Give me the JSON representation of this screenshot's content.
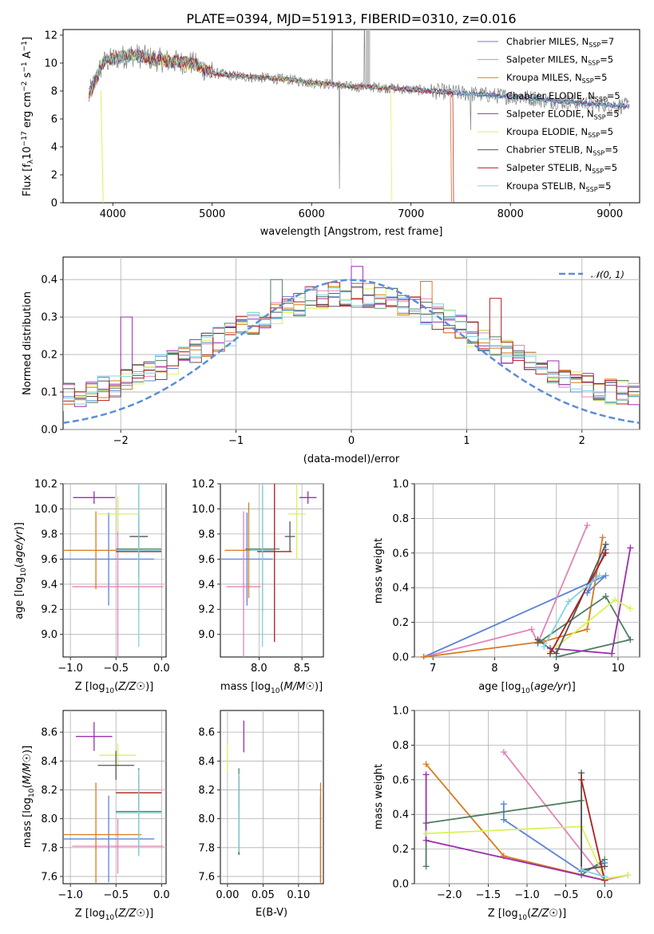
{
  "colors": {
    "Chabrier MILES": "#5b84d6",
    "Salpeter MILES": "#e383b8",
    "Kroupa MILES": "#d87a1f",
    "Chabrier ELODIE": "#4f7e61",
    "Salpeter ELODIE": "#9b2fb0",
    "Kroupa ELODIE": "#d8f25a",
    "Chabrier STELIB": "#555555",
    "Salpeter STELIB": "#b01c1c",
    "Kroupa STELIB": "#7fd6e0",
    "normal": "#5b8ed6",
    "grid": "#b0b0b0"
  },
  "chart_data": [
    {
      "id": "spectrum",
      "type": "line",
      "title": "PLATE=0394, MJD=51913, FIBERID=0310, z=0.016",
      "xlabel": "wavelength [Angstrom, rest frame]",
      "ylabel": "Flux [f_λ10^-17 erg cm^-2 s^-1 A^-1]",
      "xlim": [
        3500,
        9300
      ],
      "ylim": [
        0,
        12.4
      ],
      "xticks": [
        "4000",
        "5000",
        "6000",
        "7000",
        "8000",
        "9000"
      ],
      "yticks": [
        "0",
        "2",
        "4",
        "6",
        "8",
        "10",
        "12"
      ],
      "grid": false,
      "legend_position": "upper right",
      "legend": [
        "Chabrier MILES, N_SSP=7",
        "Salpeter MILES, N_SSP=5",
        "Kroupa MILES, N_SSP=5",
        "Chabrier ELODIE, N_SSP=5",
        "Salpeter ELODIE, N_SSP=5",
        "Kroupa ELODIE, N_SSP=5",
        "Chabrier STELIB, N_SSP=5",
        "Salpeter STELIB, N_SSP=5",
        "Kroupa STELIB, N_SSP=5"
      ],
      "legend_main": [
        "Chabrier MILES, N",
        "Salpeter MILES, N",
        "Kroupa MILES, N",
        "Chabrier ELODIE, N",
        "Salpeter ELODIE, N",
        "Kroupa ELODIE, N",
        "Chabrier STELIB, N",
        "Salpeter STELIB, N",
        "Kroupa STELIB, N"
      ],
      "legend_sub": "SSP",
      "legend_val": [
        "=7",
        "=5",
        "=5",
        "=5",
        "=5",
        "=5",
        "=5",
        "=5",
        "=5"
      ],
      "continuum_x": [
        3750,
        3900,
        4000,
        4200,
        4400,
        4600,
        4800,
        5000,
        5200,
        5400,
        5600,
        5800,
        6000,
        6200,
        6400,
        6600,
        6800,
        7000,
        7200,
        7400,
        7600,
        7800,
        8000,
        8200,
        8400,
        8600,
        8800,
        9000,
        9200
      ],
      "continuum_y": [
        7.5,
        10.0,
        10.3,
        10.6,
        10.3,
        10.1,
        10.0,
        9.3,
        9.1,
        9.0,
        8.9,
        8.8,
        8.6,
        8.5,
        8.3,
        8.3,
        8.2,
        8.1,
        8.0,
        7.9,
        7.8,
        7.7,
        7.6,
        7.5,
        7.3,
        7.2,
        7.1,
        7.0,
        6.9
      ],
      "model_cutoffs": [
        {
          "series": "Kroupa ELODIE",
          "x_end": 6800
        },
        {
          "series": "Salpeter STELIB",
          "x_end": 7420
        },
        {
          "series": "Kroupa MILES",
          "x_end": 7400
        },
        {
          "series": "Salpeter MILES",
          "x_end": 7400
        }
      ]
    },
    {
      "id": "residuals",
      "type": "step",
      "xlabel": "(data-model)/error",
      "ylabel": "Normed distribution",
      "xlim": [
        -2.5,
        2.5
      ],
      "ylim": [
        0,
        0.46
      ],
      "xticks": [
        "−2",
        "−1",
        "0",
        "1",
        "2"
      ],
      "yticks": [
        "0.0",
        "0.1",
        "0.2",
        "0.3",
        "0.4"
      ],
      "grid": true,
      "legend_position": "upper right",
      "legend": [
        "𝒩(0, 1)"
      ],
      "bin_width": 0.1,
      "reference_curve": "gaussian mean 0 sigma 1",
      "series_order": [
        "Chabrier MILES",
        "Salpeter MILES",
        "Kroupa MILES",
        "Chabrier ELODIE",
        "Salpeter ELODIE",
        "Kroupa ELODIE",
        "Chabrier STELIB",
        "Salpeter STELIB",
        "Kroupa STELIB"
      ]
    },
    {
      "id": "age_vs_Z",
      "type": "errorbar",
      "xlabel": "Z [log10(Z/Z☉)]",
      "ylabel": "age [log10(age/yr)]",
      "xlim": [
        -1.08,
        0.05
      ],
      "ylim": [
        8.82,
        10.2
      ],
      "xticks": [
        "−1.0",
        "−0.5",
        "0.0"
      ],
      "yticks": [
        "9.0",
        "9.2",
        "9.4",
        "9.6",
        "9.8",
        "10.0",
        "10.2"
      ],
      "grid": true,
      "points": [
        {
          "series": "Chabrier MILES",
          "x": -0.58,
          "xerr": 0.5,
          "y": 9.6,
          "yerr": 0.37
        },
        {
          "series": "Salpeter MILES",
          "x": -0.48,
          "xerr": 0.5,
          "y": 9.38,
          "yerr": 0.7
        },
        {
          "series": "Kroupa MILES",
          "x": -0.72,
          "xerr": 0.5,
          "y": 9.67,
          "yerr": 0.31
        },
        {
          "series": "Chabrier ELODIE",
          "x": -0.25,
          "xerr": 0.25,
          "y": 9.68,
          "yerr": 0.5
        },
        {
          "series": "Salpeter ELODIE",
          "x": -0.74,
          "xerr": 0.23,
          "y": 10.09,
          "yerr": 0.05
        },
        {
          "series": "Kroupa ELODIE",
          "x": -0.48,
          "xerr": 0.22,
          "y": 9.96,
          "yerr": 0.14
        },
        {
          "series": "Chabrier STELIB",
          "x": -0.25,
          "xerr": 0.1,
          "y": 9.78,
          "yerr": 0.16
        },
        {
          "series": "Salpeter STELIB",
          "x": -0.25,
          "xerr": 0.25,
          "y": 9.66,
          "yerr": 0.2
        },
        {
          "series": "Kroupa STELIB",
          "x": -0.25,
          "xerr": 0.25,
          "y": 9.67,
          "yerr": 0.77
        }
      ]
    },
    {
      "id": "age_vs_mass",
      "type": "errorbar",
      "xlabel": "mass [log10(M/M☉)]",
      "ylabel": "",
      "xlim": [
        7.55,
        8.75
      ],
      "ylim": [
        8.82,
        10.2
      ],
      "xticks": [
        "8.0",
        "8.5"
      ],
      "yticks": [
        "9.0",
        "9.2",
        "9.4",
        "9.6",
        "9.8",
        "10.0",
        "10.2"
      ],
      "grid": true,
      "points": [
        {
          "series": "Chabrier MILES",
          "x": 7.86,
          "xerr": 0.3,
          "y": 9.6,
          "yerr": 0.37
        },
        {
          "series": "Salpeter MILES",
          "x": 7.82,
          "xerr": 0.2,
          "y": 9.38,
          "yerr": 0.6
        },
        {
          "series": "Kroupa MILES",
          "x": 7.88,
          "xerr": 0.28,
          "y": 9.67,
          "yerr": 0.38
        },
        {
          "series": "Chabrier ELODIE",
          "x": 8.04,
          "xerr": 0.2,
          "y": 9.68,
          "yerr": 0.5
        },
        {
          "series": "Salpeter ELODIE",
          "x": 8.57,
          "xerr": 0.1,
          "y": 10.09,
          "yerr": 0.05
        },
        {
          "series": "Kroupa ELODIE",
          "x": 8.44,
          "xerr": 0.1,
          "y": 9.96,
          "yerr": 0.36
        },
        {
          "series": "Chabrier STELIB",
          "x": 8.36,
          "xerr": 0.06,
          "y": 9.78,
          "yerr": 0.12
        },
        {
          "series": "Salpeter STELIB",
          "x": 8.18,
          "xerr": 0.2,
          "y": 9.66,
          "yerr": 0.72
        },
        {
          "series": "Kroupa STELIB",
          "x": 8.04,
          "xerr": 0.14,
          "y": 9.67,
          "yerr": 0.77
        }
      ]
    },
    {
      "id": "weight_vs_age",
      "type": "line",
      "xlabel": "age [log10(age/yr)]",
      "ylabel": "mass weight",
      "xlim": [
        6.7,
        10.35
      ],
      "ylim": [
        0,
        1.0
      ],
      "xticks": [
        "7",
        "8",
        "9",
        "10"
      ],
      "yticks": [
        "0.0",
        "0.2",
        "0.4",
        "0.6",
        "0.8",
        "1.0"
      ],
      "grid": true,
      "series": [
        {
          "series": "Chabrier MILES",
          "x": [
            6.85,
            9.8,
            9.5,
            9.8
          ],
          "y": [
            0.0,
            0.47,
            0.37,
            0.62
          ]
        },
        {
          "series": "Salpeter MILES",
          "x": [
            6.85,
            8.6,
            8.7,
            9.5
          ],
          "y": [
            0.0,
            0.16,
            0.08,
            0.76
          ]
        },
        {
          "series": "Kroupa MILES",
          "x": [
            6.85,
            8.8,
            9.5,
            9.75
          ],
          "y": [
            0.0,
            0.09,
            0.16,
            0.69
          ]
        },
        {
          "series": "Chabrier ELODIE",
          "x": [
            8.7,
            9.8,
            10.2,
            9.0
          ],
          "y": [
            0.08,
            0.35,
            0.1,
            0.0
          ]
        },
        {
          "series": "Salpeter ELODIE",
          "x": [
            8.9,
            9.9,
            10.2
          ],
          "y": [
            0.05,
            0.02,
            0.63
          ]
        },
        {
          "series": "Kroupa ELODIE",
          "x": [
            8.9,
            9.5,
            9.95,
            10.2
          ],
          "y": [
            0.03,
            0.2,
            0.33,
            0.28
          ]
        },
        {
          "series": "Chabrier STELIB",
          "x": [
            8.7,
            9.0,
            9.8
          ],
          "y": [
            0.1,
            0.02,
            0.65
          ]
        },
        {
          "series": "Salpeter STELIB",
          "x": [
            8.9,
            9.8
          ],
          "y": [
            0.02,
            0.6
          ]
        },
        {
          "series": "Kroupa STELIB",
          "x": [
            8.8,
            9.2,
            9.7
          ],
          "y": [
            0.06,
            0.32,
            0.47
          ]
        }
      ]
    },
    {
      "id": "mass_vs_Z",
      "type": "errorbar",
      "xlabel": "Z [log10(Z/Z☉)]",
      "ylabel": "mass [log10(M/M☉)]",
      "xlim": [
        -1.08,
        0.05
      ],
      "ylim": [
        7.55,
        8.75
      ],
      "xticks": [
        "−1.0",
        "−0.5",
        "0.0"
      ],
      "yticks": [
        "7.6",
        "7.8",
        "8.0",
        "8.2",
        "8.4",
        "8.6"
      ],
      "grid": true,
      "points": [
        {
          "series": "Chabrier MILES",
          "x": -0.58,
          "xerr": 0.5,
          "y": 7.86,
          "yerr": 0.3
        },
        {
          "series": "Salpeter MILES",
          "x": -0.48,
          "xerr": 0.5,
          "y": 7.81,
          "yerr": 0.19
        },
        {
          "series": "Kroupa MILES",
          "x": -0.72,
          "xerr": 0.5,
          "y": 7.89,
          "yerr": 0.36
        },
        {
          "series": "Chabrier ELODIE",
          "x": -0.25,
          "xerr": 0.25,
          "y": 8.05,
          "yerr": 0.3
        },
        {
          "series": "Salpeter ELODIE",
          "x": -0.74,
          "xerr": 0.2,
          "y": 8.57,
          "yerr": 0.1
        },
        {
          "series": "Kroupa ELODIE",
          "x": -0.48,
          "xerr": 0.2,
          "y": 8.44,
          "yerr": 0.08
        },
        {
          "series": "Chabrier STELIB",
          "x": -0.5,
          "xerr": 0.2,
          "y": 8.37,
          "yerr": 0.1
        },
        {
          "series": "Salpeter STELIB",
          "x": -0.25,
          "xerr": 0.25,
          "y": 8.18,
          "yerr": 0.12
        },
        {
          "series": "Kroupa STELIB",
          "x": -0.25,
          "xerr": 0.25,
          "y": 8.04,
          "yerr": 0.3
        }
      ]
    },
    {
      "id": "mass_vs_ebv",
      "type": "errorbar",
      "xlabel": "E(B-V)",
      "ylabel": "",
      "xlim": [
        -0.01,
        0.135
      ],
      "ylim": [
        7.55,
        8.75
      ],
      "xticks": [
        "0.00",
        "0.05",
        "0.10"
      ],
      "yticks": [
        "7.6",
        "7.8",
        "8.0",
        "8.2",
        "8.4",
        "8.6"
      ],
      "grid": true,
      "points": [
        {
          "series": "Chabrier MILES",
          "x": 0.131,
          "xerr": 0.0,
          "y": 7.86,
          "yerr": 0.3
        },
        {
          "series": "Kroupa MILES",
          "x": 0.131,
          "xerr": 0.0,
          "y": 7.89,
          "yerr": 0.36
        },
        {
          "series": "Chabrier ELODIE",
          "x": 0.016,
          "xerr": 0.0,
          "y": 8.05,
          "yerr": 0.3
        },
        {
          "series": "Salpeter ELODIE",
          "x": 0.023,
          "xerr": 0.0,
          "y": 8.57,
          "yerr": 0.11
        },
        {
          "series": "Kroupa ELODIE",
          "x": 0.0,
          "xerr": 0.0,
          "y": 8.42,
          "yerr": 0.1
        },
        {
          "series": "Chabrier STELIB",
          "x": 0.016,
          "xerr": 0.0,
          "y": 8.02,
          "yerr": 0.27
        },
        {
          "series": "Salpeter STELIB",
          "x": 0.016,
          "xerr": 0.0,
          "y": 8.18,
          "yerr": 0.12
        },
        {
          "series": "Kroupa STELIB",
          "x": 0.016,
          "xerr": 0.0,
          "y": 8.04,
          "yerr": 0.27
        }
      ]
    },
    {
      "id": "weight_vs_Z",
      "type": "line",
      "xlabel": "Z [log10(Z/Z☉)]",
      "ylabel": "mass weight",
      "xlim": [
        -2.45,
        0.45
      ],
      "ylim": [
        0,
        1.0
      ],
      "xticks": [
        "−2.0",
        "−1.5",
        "−1.0",
        "−0.5",
        "0.0"
      ],
      "yticks": [
        "0.0",
        "0.2",
        "0.4",
        "0.6",
        "0.8",
        "1.0"
      ],
      "grid": true,
      "series": [
        {
          "series": "Chabrier MILES",
          "x": [
            -1.3,
            -1.3,
            -0.3,
            0.0
          ],
          "y": [
            0.46,
            0.37,
            0.07,
            0.12
          ]
        },
        {
          "series": "Salpeter MILES",
          "x": [
            -1.3,
            0.0,
            0.3
          ],
          "y": [
            0.76,
            0.02,
            0.05
          ]
        },
        {
          "series": "Kroupa MILES",
          "x": [
            -2.3,
            -1.3,
            0.0
          ],
          "y": [
            0.69,
            0.16,
            0.02
          ]
        },
        {
          "series": "Chabrier ELODIE",
          "x": [
            -2.3,
            -2.3,
            -0.3,
            -0.3,
            0.0
          ],
          "y": [
            0.1,
            0.35,
            0.48,
            0.05,
            0.14
          ]
        },
        {
          "series": "Salpeter ELODIE",
          "x": [
            -2.3,
            -2.3,
            0.0
          ],
          "y": [
            0.63,
            0.25,
            0.02
          ]
        },
        {
          "series": "Kroupa ELODIE",
          "x": [
            -2.3,
            -0.3,
            0.0,
            0.3
          ],
          "y": [
            0.29,
            0.33,
            0.03,
            0.05
          ]
        },
        {
          "series": "Chabrier STELIB",
          "x": [
            -0.3,
            -0.3,
            0.0
          ],
          "y": [
            0.64,
            0.08,
            0.1
          ]
        },
        {
          "series": "Salpeter STELIB",
          "x": [
            -0.3,
            0.0
          ],
          "y": [
            0.6,
            0.02
          ]
        },
        {
          "series": "Kroupa STELIB",
          "x": [
            -0.3,
            0.0
          ],
          "y": [
            0.08,
            0.04
          ]
        }
      ]
    }
  ]
}
